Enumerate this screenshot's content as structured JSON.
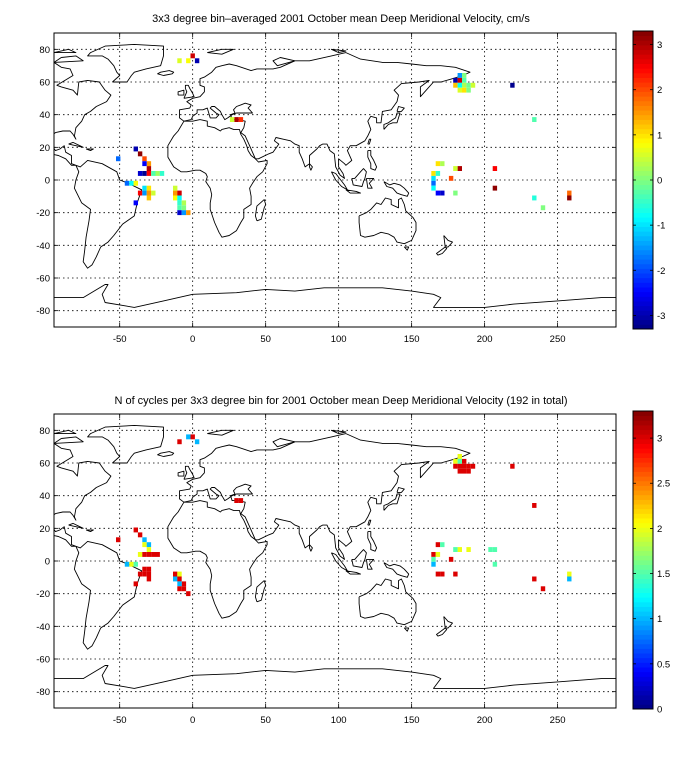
{
  "chart_data": [
    {
      "type": "heatmap",
      "title": "3x3 degree bin–averaged 2001 October mean Deep Meridional Velocity, cm/s",
      "xlabel": "",
      "ylabel": "",
      "xlim": [
        -95,
        290
      ],
      "ylim": [
        -90,
        90
      ],
      "x_ticks": [
        -50,
        0,
        50,
        100,
        150,
        200,
        250
      ],
      "y_ticks": [
        -80,
        -60,
        -40,
        -20,
        0,
        20,
        40,
        60,
        80
      ],
      "grid": true,
      "colorbar": {
        "min": -3.3,
        "max": 3.3,
        "ticks": [
          -3,
          -2,
          -1,
          0,
          1,
          2,
          3
        ],
        "colormap": "jet"
      },
      "bin_size_deg": 3,
      "cells": [
        {
          "lon": 0,
          "lat": 76,
          "v": 2.8
        },
        {
          "lon": -3,
          "lat": 73,
          "v": 0.8
        },
        {
          "lon": 3,
          "lat": 73,
          "v": -3.0
        },
        {
          "lon": -9,
          "lat": 73,
          "v": 0.6
        },
        {
          "lon": 30,
          "lat": 37,
          "v": 3.0
        },
        {
          "lon": 27,
          "lat": 37,
          "v": 0.5
        },
        {
          "lon": 33,
          "lat": 37,
          "v": 2.2
        },
        {
          "lon": -39,
          "lat": 19,
          "v": -3.0
        },
        {
          "lon": -36,
          "lat": 16,
          "v": 3.2
        },
        {
          "lon": -51,
          "lat": 13,
          "v": -1.8
        },
        {
          "lon": -33,
          "lat": 13,
          "v": 2.0
        },
        {
          "lon": -30,
          "lat": 10,
          "v": 1.5
        },
        {
          "lon": -33,
          "lat": 10,
          "v": -2.5
        },
        {
          "lon": -30,
          "lat": 7,
          "v": 3.0
        },
        {
          "lon": -36,
          "lat": 4,
          "v": -2.8
        },
        {
          "lon": -33,
          "lat": 4,
          "v": -3.2
        },
        {
          "lon": -30,
          "lat": 4,
          "v": 2.5
        },
        {
          "lon": -27,
          "lat": 4,
          "v": -0.3
        },
        {
          "lon": -24,
          "lat": 4,
          "v": 0.2
        },
        {
          "lon": -21,
          "lat": 4,
          "v": -0.5
        },
        {
          "lon": -45,
          "lat": -2,
          "v": -1.8
        },
        {
          "lon": -42,
          "lat": -2,
          "v": -0.8
        },
        {
          "lon": -39,
          "lat": -2,
          "v": 0.8
        },
        {
          "lon": -33,
          "lat": -5,
          "v": -1.0
        },
        {
          "lon": -30,
          "lat": -5,
          "v": 1.0
        },
        {
          "lon": -36,
          "lat": -8,
          "v": 2.5
        },
        {
          "lon": -33,
          "lat": -8,
          "v": -1.5
        },
        {
          "lon": -30,
          "lat": -8,
          "v": 1.5
        },
        {
          "lon": -27,
          "lat": -8,
          "v": 0.5
        },
        {
          "lon": -30,
          "lat": -11,
          "v": 1.2
        },
        {
          "lon": -39,
          "lat": -14,
          "v": -2.5
        },
        {
          "lon": -12,
          "lat": -8,
          "v": 1.5
        },
        {
          "lon": -9,
          "lat": -8,
          "v": 2.8
        },
        {
          "lon": -12,
          "lat": -11,
          "v": 0.8
        },
        {
          "lon": -9,
          "lat": -11,
          "v": -0.8
        },
        {
          "lon": -9,
          "lat": -14,
          "v": -0.5
        },
        {
          "lon": -6,
          "lat": -14,
          "v": 0.3
        },
        {
          "lon": -9,
          "lat": -17,
          "v": -0.3
        },
        {
          "lon": -6,
          "lat": -17,
          "v": 0.0
        },
        {
          "lon": -9,
          "lat": -20,
          "v": -2.8
        },
        {
          "lon": -6,
          "lat": -20,
          "v": -1.5
        },
        {
          "lon": -3,
          "lat": -20,
          "v": 1.5
        },
        {
          "lon": -12,
          "lat": -5,
          "v": 0.5
        },
        {
          "lon": 183,
          "lat": 64,
          "v": -1.5
        },
        {
          "lon": 186,
          "lat": 64,
          "v": 0.0
        },
        {
          "lon": 180,
          "lat": 61,
          "v": -3.0
        },
        {
          "lon": 183,
          "lat": 61,
          "v": 2.8
        },
        {
          "lon": 186,
          "lat": 61,
          "v": -0.3
        },
        {
          "lon": 180,
          "lat": 58,
          "v": 1.2
        },
        {
          "lon": 183,
          "lat": 58,
          "v": -0.8
        },
        {
          "lon": 186,
          "lat": 58,
          "v": 0.3
        },
        {
          "lon": 189,
          "lat": 58,
          "v": -0.1
        },
        {
          "lon": 192,
          "lat": 58,
          "v": 0.5
        },
        {
          "lon": 183,
          "lat": 55,
          "v": 0.6
        },
        {
          "lon": 186,
          "lat": 55,
          "v": 1.0
        },
        {
          "lon": 189,
          "lat": 55,
          "v": 0.0
        },
        {
          "lon": 219,
          "lat": 58,
          "v": -3.2
        },
        {
          "lon": 234,
          "lat": 37,
          "v": -0.3
        },
        {
          "lon": 168,
          "lat": 10,
          "v": 1.0
        },
        {
          "lon": 171,
          "lat": 10,
          "v": 0.3
        },
        {
          "lon": 183,
          "lat": 7,
          "v": 3.0
        },
        {
          "lon": 180,
          "lat": 7,
          "v": 0.5
        },
        {
          "lon": 207,
          "lat": 7,
          "v": 2.5
        },
        {
          "lon": 165,
          "lat": 4,
          "v": 1.0
        },
        {
          "lon": 168,
          "lat": 4,
          "v": -0.5
        },
        {
          "lon": 177,
          "lat": 1,
          "v": 2.0
        },
        {
          "lon": 165,
          "lat": 1,
          "v": -1.0
        },
        {
          "lon": 165,
          "lat": -2,
          "v": -1.8
        },
        {
          "lon": 165,
          "lat": -5,
          "v": -0.8
        },
        {
          "lon": 168,
          "lat": -8,
          "v": -2.5
        },
        {
          "lon": 171,
          "lat": -8,
          "v": -2.8
        },
        {
          "lon": 180,
          "lat": -8,
          "v": 0.0
        },
        {
          "lon": 207,
          "lat": -5,
          "v": 3.2
        },
        {
          "lon": 234,
          "lat": -11,
          "v": -0.6
        },
        {
          "lon": 240,
          "lat": -17,
          "v": 0.0
        },
        {
          "lon": 258,
          "lat": -8,
          "v": 1.8
        },
        {
          "lon": 258,
          "lat": -11,
          "v": 3.2
        }
      ]
    },
    {
      "type": "heatmap",
      "title": "N of cycles per 3x3 degree bin for 2001 October mean Deep Meridional Velocity (192 in total)",
      "xlabel": "",
      "ylabel": "",
      "xlim": [
        -95,
        290
      ],
      "ylim": [
        -90,
        90
      ],
      "x_ticks": [
        -50,
        0,
        50,
        100,
        150,
        200,
        250
      ],
      "y_ticks": [
        -80,
        -60,
        -40,
        -20,
        0,
        20,
        40,
        60,
        80
      ],
      "grid": true,
      "colorbar": {
        "min": 0,
        "max": 3.3,
        "ticks": [
          0,
          0.5,
          1,
          1.5,
          2,
          2.5,
          3
        ],
        "colormap": "jet"
      },
      "bin_size_deg": 3,
      "cells": [
        {
          "lon": 0,
          "lat": 76,
          "v": 3.0
        },
        {
          "lon": -3,
          "lat": 76,
          "v": 1.0
        },
        {
          "lon": 3,
          "lat": 73,
          "v": 1.0
        },
        {
          "lon": -9,
          "lat": 73,
          "v": 3.0
        },
        {
          "lon": 30,
          "lat": 37,
          "v": 3.0
        },
        {
          "lon": 33,
          "lat": 37,
          "v": 3.0
        },
        {
          "lon": -39,
          "lat": 19,
          "v": 3.0
        },
        {
          "lon": -36,
          "lat": 16,
          "v": 3.0
        },
        {
          "lon": -51,
          "lat": 13,
          "v": 3.0
        },
        {
          "lon": -33,
          "lat": 13,
          "v": 1.0
        },
        {
          "lon": -33,
          "lat": 10,
          "v": 2.0
        },
        {
          "lon": -30,
          "lat": 10,
          "v": 1.0
        },
        {
          "lon": -30,
          "lat": 7,
          "v": 2.0
        },
        {
          "lon": -36,
          "lat": 4,
          "v": 2.0
        },
        {
          "lon": -33,
          "lat": 4,
          "v": 3.0
        },
        {
          "lon": -30,
          "lat": 4,
          "v": 3.0
        },
        {
          "lon": -27,
          "lat": 4,
          "v": 3.0
        },
        {
          "lon": -24,
          "lat": 4,
          "v": 3.0
        },
        {
          "lon": -42,
          "lat": -2,
          "v": 2.0
        },
        {
          "lon": -39,
          "lat": -2,
          "v": 1.5
        },
        {
          "lon": -45,
          "lat": -2,
          "v": 1.0
        },
        {
          "lon": -33,
          "lat": -5,
          "v": 3.0
        },
        {
          "lon": -30,
          "lat": -5,
          "v": 3.0
        },
        {
          "lon": -36,
          "lat": -8,
          "v": 3.0
        },
        {
          "lon": -33,
          "lat": -8,
          "v": 3.0
        },
        {
          "lon": -30,
          "lat": -8,
          "v": 3.0
        },
        {
          "lon": -30,
          "lat": -11,
          "v": 3.0
        },
        {
          "lon": -39,
          "lat": -14,
          "v": 3.0
        },
        {
          "lon": -12,
          "lat": -8,
          "v": 3.0
        },
        {
          "lon": -9,
          "lat": -8,
          "v": 2.0
        },
        {
          "lon": -12,
          "lat": -11,
          "v": 1.0
        },
        {
          "lon": -9,
          "lat": -11,
          "v": 3.0
        },
        {
          "lon": -6,
          "lat": -14,
          "v": 3.0
        },
        {
          "lon": -9,
          "lat": -14,
          "v": 1.0
        },
        {
          "lon": -9,
          "lat": -17,
          "v": 3.0
        },
        {
          "lon": -6,
          "lat": -17,
          "v": 3.0
        },
        {
          "lon": -3,
          "lat": -20,
          "v": 3.0
        },
        {
          "lon": 183,
          "lat": 64,
          "v": 2.0
        },
        {
          "lon": 180,
          "lat": 61,
          "v": 2.0
        },
        {
          "lon": 183,
          "lat": 61,
          "v": 1.5
        },
        {
          "lon": 186,
          "lat": 61,
          "v": 3.0
        },
        {
          "lon": 180,
          "lat": 58,
          "v": 3.0
        },
        {
          "lon": 183,
          "lat": 58,
          "v": 3.0
        },
        {
          "lon": 186,
          "lat": 58,
          "v": 3.0
        },
        {
          "lon": 189,
          "lat": 58,
          "v": 3.0
        },
        {
          "lon": 192,
          "lat": 58,
          "v": 3.0
        },
        {
          "lon": 183,
          "lat": 55,
          "v": 3.0
        },
        {
          "lon": 186,
          "lat": 55,
          "v": 3.0
        },
        {
          "lon": 189,
          "lat": 55,
          "v": 3.0
        },
        {
          "lon": 219,
          "lat": 58,
          "v": 3.0
        },
        {
          "lon": 234,
          "lat": 34,
          "v": 3.0
        },
        {
          "lon": 168,
          "lat": 10,
          "v": 3.0
        },
        {
          "lon": 171,
          "lat": 10,
          "v": 1.5
        },
        {
          "lon": 183,
          "lat": 7,
          "v": 2.0
        },
        {
          "lon": 180,
          "lat": 7,
          "v": 1.5
        },
        {
          "lon": 189,
          "lat": 7,
          "v": 2.0
        },
        {
          "lon": 207,
          "lat": 7,
          "v": 1.5
        },
        {
          "lon": 204,
          "lat": 7,
          "v": 1.5
        },
        {
          "lon": 165,
          "lat": 4,
          "v": 3.0
        },
        {
          "lon": 168,
          "lat": 4,
          "v": 2.0
        },
        {
          "lon": 165,
          "lat": 1,
          "v": 1.5
        },
        {
          "lon": 177,
          "lat": 1,
          "v": 3.0
        },
        {
          "lon": 165,
          "lat": -2,
          "v": 1.0
        },
        {
          "lon": 207,
          "lat": -2,
          "v": 1.5
        },
        {
          "lon": 168,
          "lat": -8,
          "v": 3.0
        },
        {
          "lon": 171,
          "lat": -8,
          "v": 3.0
        },
        {
          "lon": 180,
          "lat": -8,
          "v": 3.0
        },
        {
          "lon": 234,
          "lat": -11,
          "v": 3.0
        },
        {
          "lon": 240,
          "lat": -17,
          "v": 3.0
        },
        {
          "lon": 258,
          "lat": -8,
          "v": 2.0
        },
        {
          "lon": 258,
          "lat": -11,
          "v": 1.0
        }
      ]
    }
  ]
}
